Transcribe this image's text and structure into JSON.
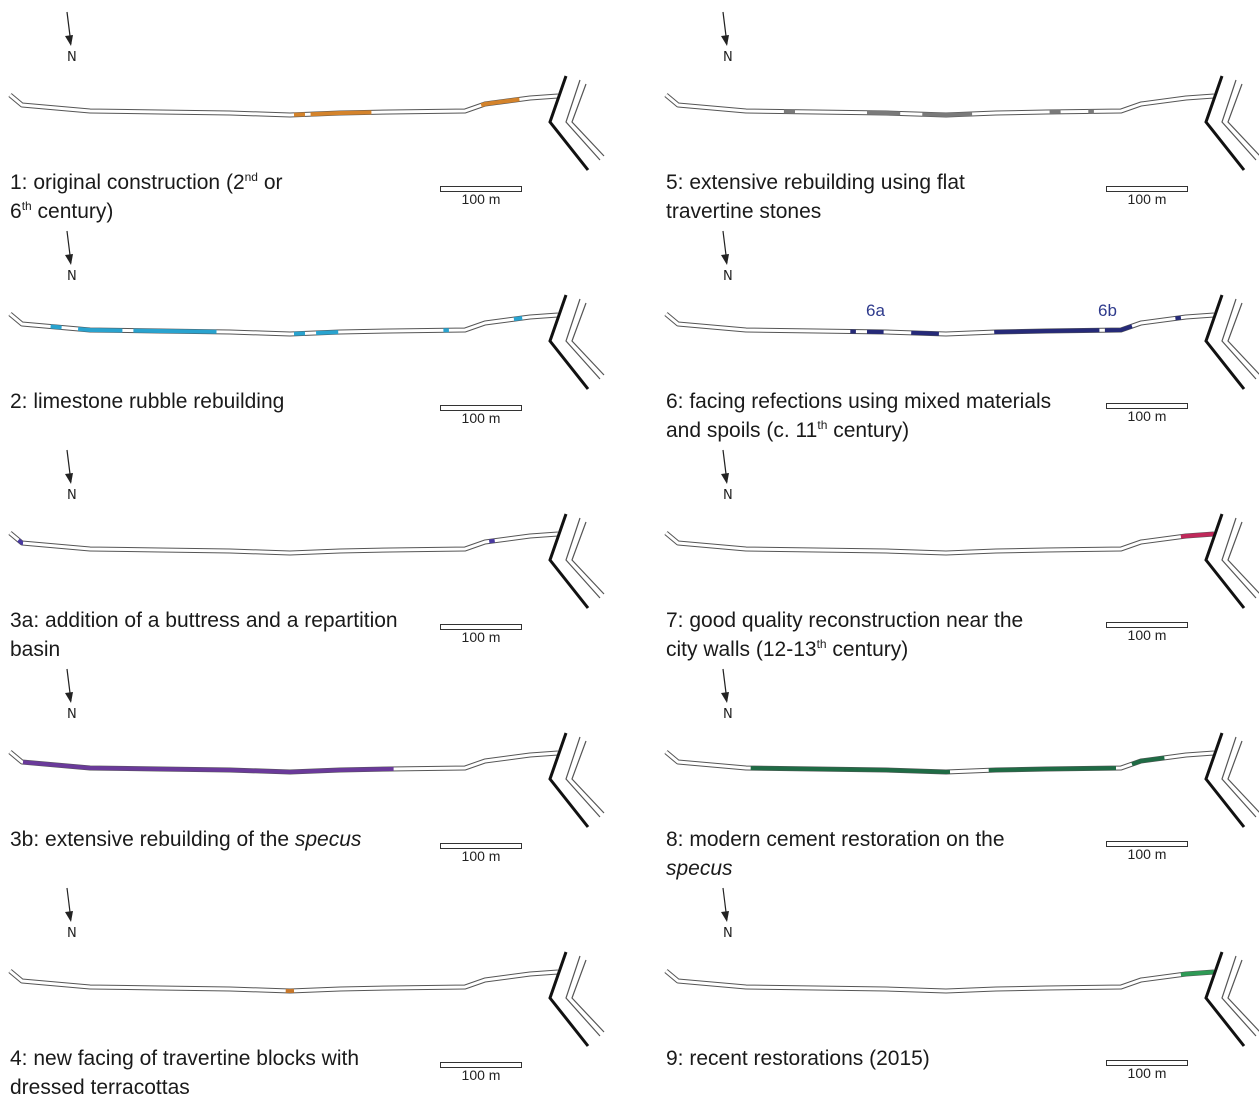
{
  "north": "N",
  "scale": "100 m",
  "phases": [
    {
      "id": "1",
      "caption": [
        [
          "1: original construction (2",
          "nd",
          " or"
        ],
        [
          "6",
          "th",
          " century)"
        ]
      ],
      "color": "#d4832b",
      "segs": [
        [
          0.52,
          0.54
        ],
        [
          0.55,
          0.66
        ],
        [
          0.86,
          0.93
        ]
      ]
    },
    {
      "id": "2",
      "caption": [
        [
          "2: limestone rubble rebuilding"
        ]
      ],
      "color": "#29a3cf",
      "segs": [
        [
          0.08,
          0.1
        ],
        [
          0.13,
          0.21
        ],
        [
          0.23,
          0.38
        ],
        [
          0.52,
          0.54
        ],
        [
          0.56,
          0.6
        ],
        [
          0.79,
          0.8
        ],
        [
          0.92,
          0.935
        ]
      ]
    },
    {
      "id": "3a",
      "caption": [
        [
          "3a: addition of a buttress and a repartition"
        ],
        [
          "basin"
        ]
      ],
      "color": "#4a3aa0",
      "segs": [
        [
          0.02,
          0.03
        ],
        [
          0.875,
          0.885
        ]
      ]
    },
    {
      "id": "3b",
      "caption": [
        [
          "3b: extensive rebuilding of the ",
          {
            "i": "specus"
          }
        ]
      ],
      "color": "#6a3a9a",
      "segs": [
        [
          0.03,
          0.7
        ]
      ]
    },
    {
      "id": "4",
      "caption": [
        [
          "4: new facing of travertine blocks with"
        ],
        [
          "dressed terracottas"
        ]
      ],
      "color": "#c8782a",
      "segs": [
        [
          0.505,
          0.52
        ]
      ]
    },
    {
      "id": "5",
      "caption": [
        [
          "5: extensive rebuilding using flat"
        ],
        [
          "travertine stones"
        ]
      ],
      "color": "#7a7a7a",
      "segs": [
        [
          0.22,
          0.24
        ],
        [
          0.37,
          0.43
        ],
        [
          0.47,
          0.56
        ],
        [
          0.7,
          0.72
        ],
        [
          0.77,
          0.78
        ]
      ]
    },
    {
      "id": "6",
      "caption": [
        [
          "6: facing refections using mixed materials"
        ],
        [
          "and spoils (c. 11",
          "th",
          " century)"
        ]
      ],
      "color": "#262a78",
      "segs": [
        [
          0.34,
          0.35
        ],
        [
          0.37,
          0.4
        ],
        [
          0.45,
          0.5
        ],
        [
          0.6,
          0.79
        ],
        [
          0.8,
          0.85
        ],
        [
          0.93,
          0.94
        ]
      ],
      "labels": [
        "6a",
        "6b"
      ]
    },
    {
      "id": "7",
      "caption": [
        [
          "7: good quality reconstruction near the"
        ],
        [
          "city walls (12-13",
          "th",
          " century)"
        ]
      ],
      "color": "#c0285a",
      "segs": [
        [
          0.94,
          1.0
        ]
      ]
    },
    {
      "id": "8",
      "caption": [
        [
          "8: modern cement restoration on the"
        ],
        [
          {
            "i": "specus"
          }
        ]
      ],
      "color": "#1f6b45",
      "segs": [
        [
          0.16,
          0.52
        ],
        [
          0.59,
          0.82
        ],
        [
          0.85,
          0.91
        ]
      ]
    },
    {
      "id": "9",
      "caption": [
        [
          "9: recent restorations (2015)"
        ]
      ],
      "color": "#2e9a55",
      "segs": [
        [
          0.94,
          1.0
        ]
      ]
    }
  ]
}
